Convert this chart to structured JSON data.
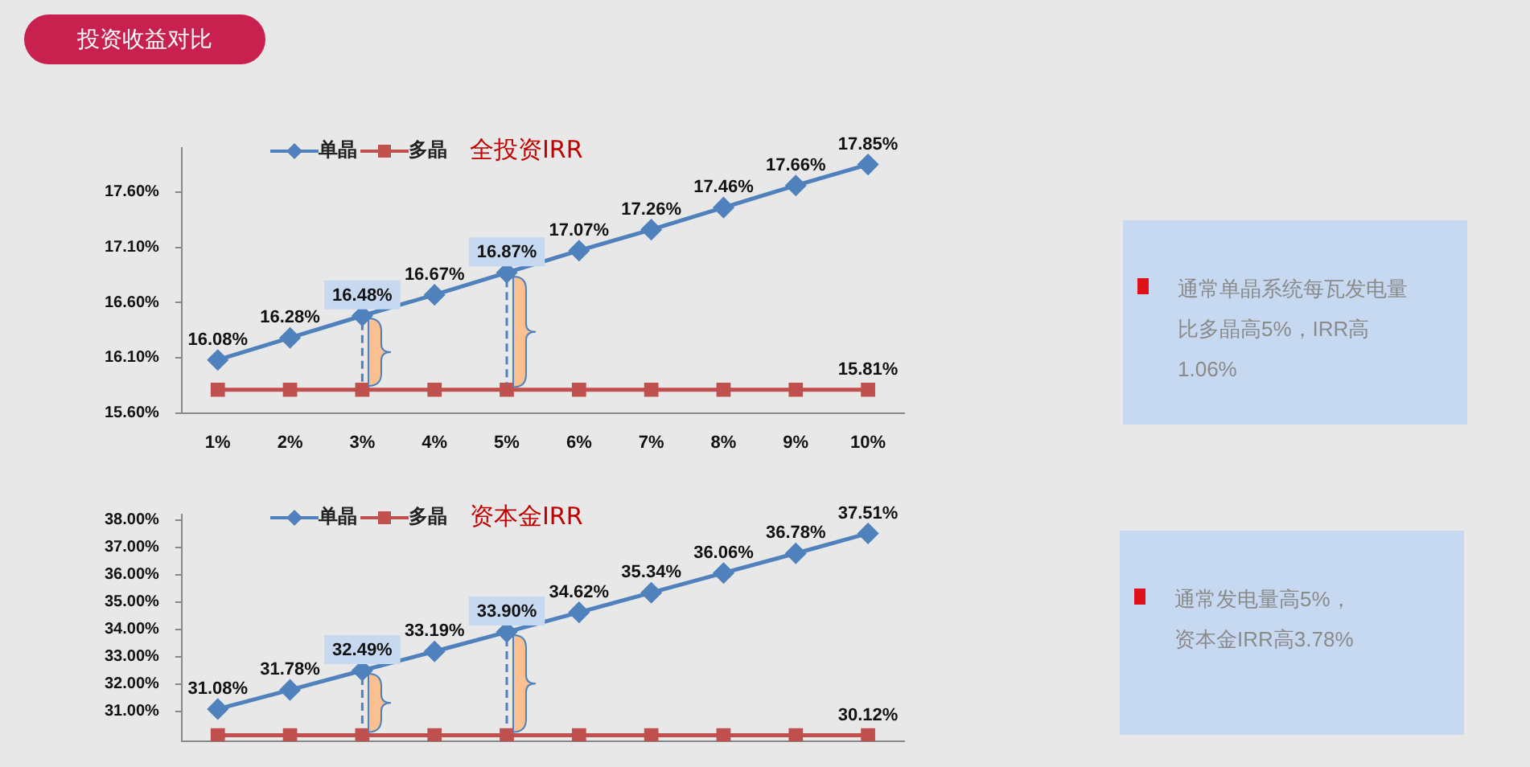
{
  "chart_data": [
    {
      "type": "line",
      "title": "全投资IRR",
      "annotations": [
        "投资收益对比",
        "通常单晶系统每瓦发电量比多晶高5%，IRR高1.06%"
      ],
      "categories": [
        "1%",
        "2%",
        "3%",
        "4%",
        "5%",
        "6%",
        "7%",
        "8%",
        "9%",
        "10%"
      ],
      "ylim": [
        15.6,
        18.0
      ],
      "yticks": [
        {
          "value": 15.6,
          "label": "15.60%"
        },
        {
          "value": 16.1,
          "label": "16.10%"
        },
        {
          "value": 16.6,
          "label": "16.60%"
        },
        {
          "value": 17.1,
          "label": "17.10%"
        },
        {
          "value": 17.6,
          "label": "17.60%"
        }
      ],
      "legend": "top left",
      "series": [
        {
          "name": "单晶",
          "color": "#4f81bd",
          "marker": "diamond",
          "values": [
            16.08,
            16.28,
            16.48,
            16.67,
            16.87,
            17.07,
            17.26,
            17.46,
            17.66,
            17.85
          ],
          "value_labels": [
            "16.08%",
            "16.28%",
            "16.48%",
            "16.67%",
            "16.87%",
            "17.07%",
            "17.26%",
            "17.46%",
            "17.66%",
            "17.85%"
          ]
        },
        {
          "name": "多晶",
          "color": "#c0504d",
          "marker": "square",
          "values": [
            15.81,
            15.81,
            15.81,
            15.81,
            15.81,
            15.81,
            15.81,
            15.81,
            15.81,
            15.81
          ],
          "value_labels": [
            null,
            null,
            null,
            null,
            null,
            null,
            null,
            null,
            null,
            "15.81%"
          ]
        }
      ]
    },
    {
      "type": "line",
      "title": "资本金IRR",
      "annotations": [
        "通常发电量高5%，资本金IRR高3.78%"
      ],
      "categories": [
        null,
        null,
        null,
        null,
        null,
        null,
        null,
        null,
        null,
        null
      ],
      "tick_labels": "y",
      "ylim": [
        29.9,
        38.2
      ],
      "yticks": [
        {
          "value": 31,
          "label": "31.00%"
        },
        {
          "value": 32,
          "label": "32.00%"
        },
        {
          "value": 33,
          "label": "33.00%"
        },
        {
          "value": 34,
          "label": "34.00%"
        },
        {
          "value": 35,
          "label": "35.00%"
        },
        {
          "value": 36,
          "label": "36.00%"
        },
        {
          "value": 37,
          "label": "37.00%"
        },
        {
          "value": 38,
          "label": "38.00%"
        }
      ],
      "legend": "top left",
      "series": [
        {
          "name": "单晶",
          "color": "#4f81bd",
          "marker": "diamond",
          "values": [
            31.08,
            31.78,
            32.49,
            33.19,
            33.9,
            34.62,
            35.34,
            36.06,
            36.78,
            37.51
          ],
          "value_labels": [
            "31.08%",
            "31.78%",
            "32.49%",
            "33.19%",
            "33.90%",
            "34.62%",
            "35.34%",
            "36.06%",
            "36.78%",
            "37.51%"
          ]
        },
        {
          "name": "多晶",
          "color": "#c0504d",
          "marker": "square",
          "values": [
            30.12,
            30.12,
            30.12,
            30.12,
            30.12,
            30.12,
            30.12,
            30.12,
            30.12,
            30.12
          ],
          "value_labels": [
            null,
            null,
            null,
            null,
            null,
            null,
            null,
            null,
            null,
            "30.12%"
          ]
        }
      ]
    }
  ]
}
